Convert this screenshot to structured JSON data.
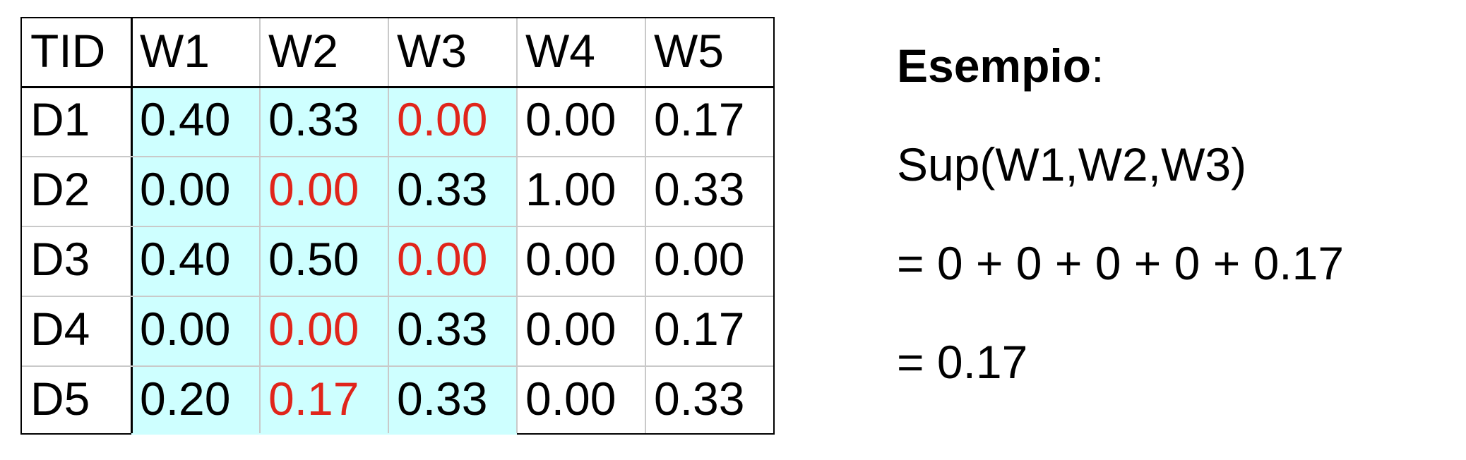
{
  "table": {
    "headers": [
      "TID",
      "W1",
      "W2",
      "W3",
      "W4",
      "W5"
    ],
    "rows": [
      {
        "tid": "D1",
        "values": [
          "0.40",
          "0.33",
          "0.00",
          "0.00",
          "0.17"
        ]
      },
      {
        "tid": "D2",
        "values": [
          "0.00",
          "0.00",
          "0.33",
          "1.00",
          "0.33"
        ]
      },
      {
        "tid": "D3",
        "values": [
          "0.40",
          "0.50",
          "0.00",
          "0.00",
          "0.00"
        ]
      },
      {
        "tid": "D4",
        "values": [
          "0.00",
          "0.00",
          "0.33",
          "0.00",
          "0.17"
        ]
      },
      {
        "tid": "D5",
        "values": [
          "0.20",
          "0.17",
          "0.33",
          "0.00",
          "0.33"
        ]
      }
    ],
    "highlight_red": [
      [
        0,
        2
      ],
      [
        1,
        1
      ],
      [
        2,
        2
      ],
      [
        3,
        1
      ],
      [
        4,
        1
      ]
    ]
  },
  "colors": {
    "highlight_fill": "#ceffff",
    "min_value_text": "#e0251b",
    "text": "#000000",
    "grid": "#c9c9c9"
  },
  "example": {
    "title": "Esempio",
    "title_suffix": ":",
    "line1": "Sup(W1,W2,W3)",
    "line2": "= 0 + 0 + 0 + 0 + 0.17",
    "line3": "= 0.17"
  }
}
